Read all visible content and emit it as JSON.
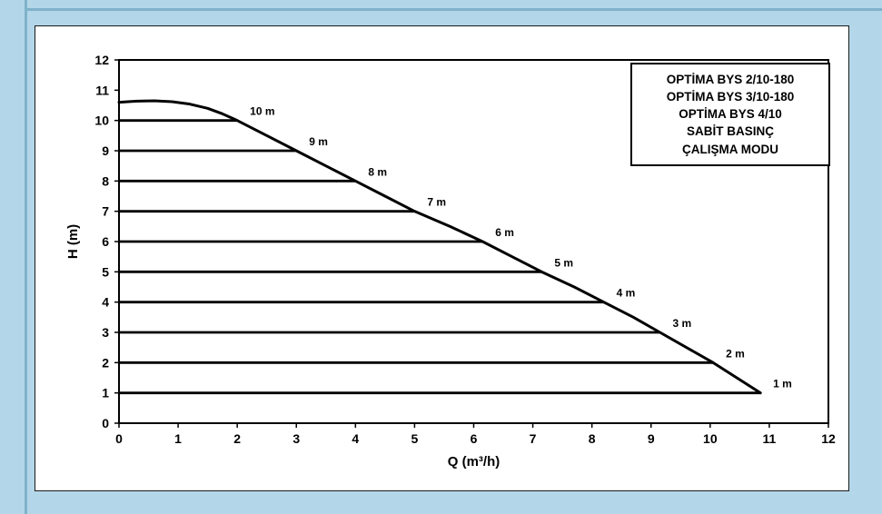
{
  "page": {
    "background": "#b3d7e8",
    "edge_color": "#7fb2cb",
    "card_background": "#ffffff"
  },
  "chart_data": {
    "type": "line",
    "title": "",
    "xlabel": "Q (m³/h)",
    "ylabel": "H (m)",
    "xlim": [
      0,
      12
    ],
    "ylim": [
      0,
      12
    ],
    "xticks": [
      0,
      1,
      2,
      3,
      4,
      5,
      6,
      7,
      8,
      9,
      10,
      11,
      12
    ],
    "yticks": [
      0,
      1,
      2,
      3,
      4,
      5,
      6,
      7,
      8,
      9,
      10,
      11,
      12
    ],
    "grid": false,
    "curve_color": "#000000",
    "series": [
      {
        "name": "pump-curve",
        "points": [
          [
            0,
            10.6
          ],
          [
            0.3,
            10.64
          ],
          [
            0.6,
            10.65
          ],
          [
            0.9,
            10.62
          ],
          [
            1.2,
            10.54
          ],
          [
            1.5,
            10.4
          ],
          [
            1.75,
            10.22
          ],
          [
            2,
            10
          ],
          [
            2.5,
            9.5
          ],
          [
            3,
            9
          ],
          [
            3.5,
            8.5
          ],
          [
            4,
            8
          ],
          [
            4.5,
            7.5
          ],
          [
            5,
            7
          ],
          [
            5.6,
            6.5
          ],
          [
            6.15,
            6
          ],
          [
            6.65,
            5.5
          ],
          [
            7.15,
            5
          ],
          [
            7.7,
            4.5
          ],
          [
            8.2,
            4
          ],
          [
            8.7,
            3.5
          ],
          [
            9.15,
            3
          ],
          [
            9.6,
            2.5
          ],
          [
            10.05,
            2
          ],
          [
            10.45,
            1.5
          ],
          [
            10.85,
            1
          ]
        ]
      }
    ],
    "pressure_lines": [
      {
        "label": "10 m",
        "h": 10,
        "x_end": 2.0
      },
      {
        "label": "9 m",
        "h": 9,
        "x_end": 3.0
      },
      {
        "label": "8 m",
        "h": 8,
        "x_end": 4.0
      },
      {
        "label": "7 m",
        "h": 7,
        "x_end": 5.0
      },
      {
        "label": "6 m",
        "h": 6,
        "x_end": 6.15
      },
      {
        "label": "5 m",
        "h": 5,
        "x_end": 7.15
      },
      {
        "label": "4 m",
        "h": 4,
        "x_end": 8.2
      },
      {
        "label": "3 m",
        "h": 3,
        "x_end": 9.15
      },
      {
        "label": "2 m",
        "h": 2,
        "x_end": 10.05
      },
      {
        "label": "1 m",
        "h": 1,
        "x_end": 10.85
      }
    ],
    "legend": {
      "position": "top-right",
      "lines": [
        "OPTİMA BYS 2/10-180",
        "OPTİMA BYS 3/10-180",
        "OPTİMA BYS 4/10",
        "SABİT BASINÇ",
        "ÇALIŞMA MODU"
      ]
    }
  }
}
